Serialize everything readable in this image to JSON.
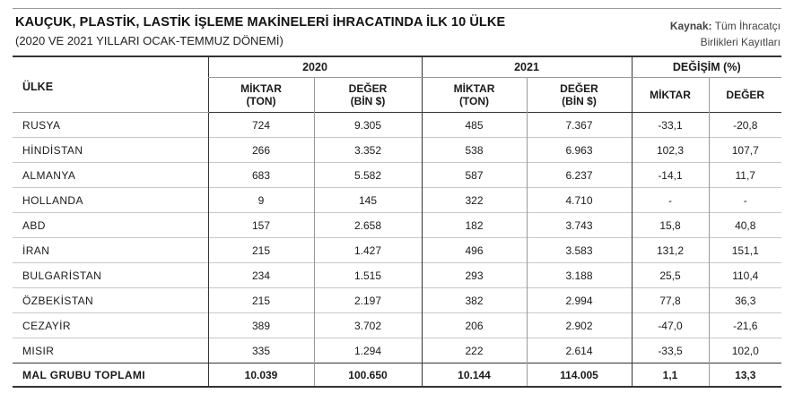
{
  "header": {
    "title": "KAUÇUK, PLASTİK, LASTİK İŞLEME MAKİNELERİ İHRACATINDA İLK 10 ÜLKE",
    "subtitle": "(2020 VE 2021 YILLARI OCAK-TEMMUZ DÖNEMİ)",
    "source_label": "Kaynak:",
    "source_line1": "Tüm İhracatçı",
    "source_line2": "Birlikleri Kayıtları"
  },
  "table": {
    "country_header": "ÜLKE",
    "year_2020": "2020",
    "year_2021": "2021",
    "change_header": "DEĞİŞİM (%)",
    "sub": {
      "miktar_line1": "MİKTAR",
      "miktar_line2": "(TON)",
      "deger_line1": "DEĞER",
      "deger_line2": "(BİN $)",
      "change_miktar": "MİKTAR",
      "change_deger": "DEĞER"
    },
    "rows": [
      [
        "RUSYA",
        "724",
        "9.305",
        "485",
        "7.367",
        "-33,1",
        "-20,8"
      ],
      [
        "HİNDİSTAN",
        "266",
        "3.352",
        "538",
        "6.963",
        "102,3",
        "107,7"
      ],
      [
        "ALMANYA",
        "683",
        "5.582",
        "587",
        "6.237",
        "-14,1",
        "11,7"
      ],
      [
        "HOLLANDA",
        "9",
        "145",
        "322",
        "4.710",
        "-",
        "-"
      ],
      [
        "ABD",
        "157",
        "2.658",
        "182",
        "3.743",
        "15,8",
        "40,8"
      ],
      [
        "İRAN",
        "215",
        "1.427",
        "496",
        "3.583",
        "131,2",
        "151,1"
      ],
      [
        "BULGARİSTAN",
        "234",
        "1.515",
        "293",
        "3.188",
        "25,5",
        "110,4"
      ],
      [
        "ÖZBEKİSTAN",
        "215",
        "2.197",
        "382",
        "2.994",
        "77,8",
        "36,3"
      ],
      [
        "CEZAYİR",
        "389",
        "3.702",
        "206",
        "2.902",
        "-47,0",
        "-21,6"
      ],
      [
        "MISIR",
        "335",
        "1.294",
        "222",
        "2.614",
        "-33,5",
        "102,0"
      ]
    ],
    "total": [
      "MAL GRUBU TOPLAMI",
      "10.039",
      "100.650",
      "10.144",
      "114.005",
      "1,1",
      "13,3"
    ]
  }
}
